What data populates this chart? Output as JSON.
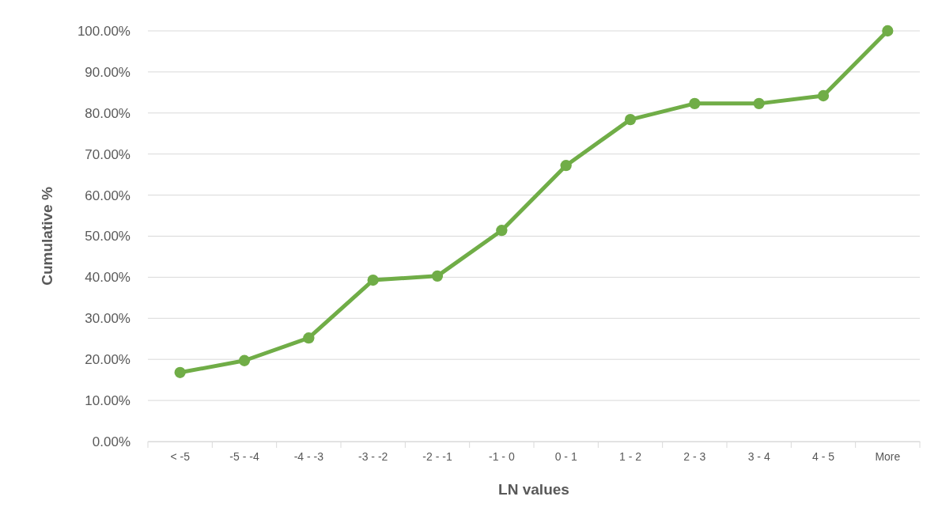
{
  "chart_data": {
    "type": "line",
    "xlabel": "LN values",
    "ylabel": "Cumulative %",
    "categories": [
      "< -5",
      "-5 - -4",
      "-4 - -3",
      "-3 - -2",
      "-2 - -1",
      "-1 - 0",
      "0 - 1",
      "1 - 2",
      "2 - 3",
      "3 - 4",
      "4 - 5",
      "More"
    ],
    "series": [
      {
        "color": "#70ad47",
        "values": [
          16.8,
          19.7,
          25.2,
          39.3,
          40.3,
          51.4,
          67.2,
          78.4,
          82.3,
          82.3,
          84.2,
          100
        ]
      }
    ],
    "ylim": [
      0,
      100
    ],
    "yticks": [
      {
        "value": 0,
        "label": "0.00%"
      },
      {
        "value": 10,
        "label": "10.00%"
      },
      {
        "value": 20,
        "label": "20.00%"
      },
      {
        "value": 30,
        "label": "30.00%"
      },
      {
        "value": 40,
        "label": "40.00%"
      },
      {
        "value": 50,
        "label": "50.00%"
      },
      {
        "value": 60,
        "label": "60.00%"
      },
      {
        "value": 70,
        "label": "70.00%"
      },
      {
        "value": 80,
        "label": "80.00%"
      },
      {
        "value": 90,
        "label": "90.00%"
      },
      {
        "value": 100,
        "label": "100.00%"
      }
    ],
    "grid": "y",
    "marker": "circle",
    "line_style": "solid"
  }
}
